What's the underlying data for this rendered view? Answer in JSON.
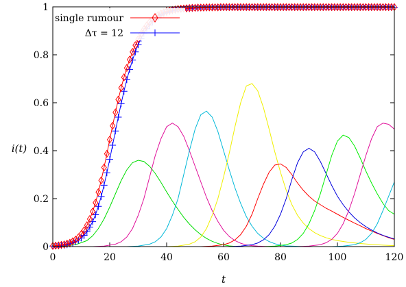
{
  "chart_data": {
    "type": "line",
    "xlabel": "t",
    "ylabel": "i(t)",
    "xlim": [
      0,
      120
    ],
    "ylim": [
      0,
      1
    ],
    "x_ticks": [
      "0",
      "20",
      "40",
      "60",
      "80",
      "100",
      "120"
    ],
    "y_ticks": [
      "0",
      "0.2",
      "0.4",
      "0.6",
      "0.8",
      "1"
    ],
    "legend_position": "top-left",
    "series": [
      {
        "name": "single rumour",
        "color": "#ff0000",
        "marker": "diamond",
        "x": [
          0,
          1,
          2,
          3,
          4,
          5,
          6,
          7,
          8,
          9,
          10,
          11,
          12,
          13,
          14,
          15,
          16,
          17,
          18,
          19,
          20,
          21,
          22,
          23,
          24,
          25,
          26,
          27,
          28,
          29,
          30,
          31,
          32,
          33,
          34,
          35,
          36,
          37,
          38,
          39,
          40,
          41,
          42,
          43,
          44,
          45,
          46,
          47,
          48,
          49,
          50,
          51,
          52,
          53,
          54,
          55,
          56,
          57,
          58,
          59,
          60,
          61,
          62,
          63,
          64,
          65,
          66,
          67,
          68,
          69,
          70,
          71,
          72,
          73,
          74,
          75,
          76,
          77,
          78,
          79,
          80,
          81,
          82,
          83,
          84,
          85,
          86,
          87,
          88,
          89,
          90,
          91,
          92,
          93,
          94,
          95,
          96,
          97,
          98,
          99,
          100,
          101,
          102,
          103,
          104,
          105,
          106,
          107,
          108,
          109,
          110,
          111,
          112,
          113,
          114,
          115,
          116,
          117,
          118,
          119,
          120
        ],
        "y": [
          0.003,
          0.004,
          0.005,
          0.007,
          0.009,
          0.012,
          0.016,
          0.022,
          0.029,
          0.039,
          0.052,
          0.068,
          0.089,
          0.115,
          0.146,
          0.183,
          0.227,
          0.276,
          0.33,
          0.387,
          0.446,
          0.504,
          0.56,
          0.613,
          0.662,
          0.706,
          0.745,
          0.78,
          0.812,
          0.84,
          0.865,
          0.887,
          0.906,
          0.922,
          0.936,
          0.948,
          0.958,
          0.966,
          0.972,
          0.977,
          0.981,
          0.984,
          0.987,
          0.989,
          0.991,
          0.992,
          0.993,
          0.994,
          0.995,
          0.996,
          0.996,
          0.997,
          0.997,
          0.997,
          0.998,
          0.998,
          0.998,
          0.998,
          0.998,
          0.999,
          0.999,
          0.999,
          0.999,
          0.999,
          0.999,
          0.999,
          0.999,
          0.999,
          0.999,
          0.999,
          0.999,
          0.999,
          0.999,
          0.999,
          0.999,
          0.999,
          0.999,
          0.999,
          0.999,
          0.999,
          0.999,
          0.999,
          0.999,
          0.999,
          0.999,
          0.999,
          0.999,
          0.999,
          0.999,
          0.999,
          0.999,
          0.999,
          0.999,
          0.999,
          0.999,
          0.999,
          0.999,
          0.999,
          0.999,
          0.999,
          0.999,
          0.999,
          0.999,
          0.999,
          0.999,
          0.999,
          0.999,
          0.999,
          0.999,
          0.999,
          0.999,
          0.999,
          0.999,
          0.999,
          0.999,
          0.999,
          0.999,
          0.999,
          0.999,
          0.999,
          0.999
        ]
      },
      {
        "name": "Δτ = 12",
        "color": "#0000ff",
        "marker": "plus",
        "x": [
          0,
          1,
          2,
          3,
          4,
          5,
          6,
          7,
          8,
          9,
          10,
          11,
          12,
          13,
          14,
          15,
          16,
          17,
          18,
          19,
          20,
          21,
          22,
          23,
          24,
          25,
          26,
          27,
          28,
          29,
          30,
          31,
          32,
          33,
          34,
          35,
          36,
          37,
          38,
          39,
          40,
          41,
          42,
          43,
          44,
          45,
          46,
          47,
          48,
          49,
          50,
          51,
          52,
          53,
          54,
          55,
          56,
          57,
          58,
          59,
          60,
          61,
          62,
          63,
          64,
          65,
          66,
          67,
          68,
          69,
          70,
          71,
          72,
          73,
          74,
          75,
          76,
          77,
          78,
          79,
          80,
          81,
          82,
          83,
          84,
          85,
          86,
          87,
          88,
          89,
          90,
          91,
          92,
          93,
          94,
          95,
          96,
          97,
          98,
          99,
          100,
          101,
          102,
          103,
          104,
          105,
          106,
          107,
          108,
          109,
          110,
          111,
          112,
          113,
          114,
          115,
          116,
          117,
          118,
          119,
          120
        ],
        "y": [
          0.002,
          0.003,
          0.004,
          0.005,
          0.006,
          0.008,
          0.011,
          0.015,
          0.02,
          0.027,
          0.036,
          0.047,
          0.062,
          0.081,
          0.104,
          0.133,
          0.168,
          0.209,
          0.256,
          0.308,
          0.364,
          0.423,
          0.482,
          0.54,
          0.596,
          0.648,
          0.696,
          0.739,
          0.778,
          0.812,
          0.842,
          0.868,
          0.89,
          0.909,
          0.924,
          0.937,
          0.948,
          0.957,
          0.965,
          0.971,
          0.976,
          0.98,
          0.984,
          0.986,
          0.988,
          0.99,
          0.991,
          0.992,
          0.993,
          0.994,
          0.995,
          0.995,
          0.996,
          0.996,
          0.996,
          0.997,
          0.997,
          0.997,
          0.997,
          0.997,
          0.998,
          0.998,
          0.998,
          0.998,
          0.998,
          0.998,
          0.998,
          0.998,
          0.998,
          0.998,
          0.998,
          0.998,
          0.998,
          0.998,
          0.998,
          0.998,
          0.998,
          0.998,
          0.998,
          0.998,
          0.998,
          0.998,
          0.998,
          0.998,
          0.998,
          0.998,
          0.998,
          0.998,
          0.998,
          0.998,
          0.998,
          0.998,
          0.998,
          0.998,
          0.998,
          0.998,
          0.998,
          0.998,
          0.998,
          0.998,
          0.998,
          0.998,
          0.998,
          0.998,
          0.998,
          0.998,
          0.998,
          0.998,
          0.998,
          0.998,
          0.998,
          0.998,
          0.998,
          0.998,
          0.998,
          0.998,
          0.998,
          0.998,
          0.998,
          0.998,
          0.998
        ]
      },
      {
        "color": "#00dd00",
        "x": [
          0,
          4,
          8,
          12,
          14,
          16,
          18,
          20,
          22,
          24,
          26,
          28,
          30,
          32,
          34,
          36,
          38,
          40,
          42,
          44,
          46,
          48,
          50,
          52,
          54,
          56,
          58,
          60,
          62,
          64
        ],
        "y": [
          0,
          0.002,
          0.008,
          0.025,
          0.045,
          0.075,
          0.115,
          0.165,
          0.22,
          0.275,
          0.32,
          0.35,
          0.36,
          0.355,
          0.335,
          0.305,
          0.268,
          0.228,
          0.19,
          0.155,
          0.122,
          0.094,
          0.07,
          0.05,
          0.034,
          0.022,
          0.013,
          0.007,
          0.003,
          0.001
        ]
      },
      {
        "color": "#e0109a",
        "x": [
          14,
          18,
          22,
          24,
          26,
          28,
          30,
          32,
          34,
          36,
          38,
          40,
          42,
          44,
          46,
          48,
          50,
          52,
          54,
          56,
          58,
          60,
          62,
          64,
          66,
          68,
          70,
          72,
          74,
          76,
          78
        ],
        "y": [
          0,
          0.002,
          0.01,
          0.02,
          0.04,
          0.075,
          0.13,
          0.2,
          0.29,
          0.38,
          0.45,
          0.5,
          0.515,
          0.5,
          0.46,
          0.4,
          0.335,
          0.27,
          0.205,
          0.15,
          0.105,
          0.068,
          0.042,
          0.025,
          0.014,
          0.007,
          0.004,
          0.002,
          0.001,
          0,
          0
        ]
      },
      {
        "color": "#00b8d8",
        "x": [
          26,
          30,
          34,
          36,
          38,
          40,
          42,
          44,
          46,
          48,
          50,
          52,
          54,
          56,
          58,
          60,
          62,
          64,
          66,
          68,
          70,
          72,
          74,
          76,
          78,
          80,
          82,
          84,
          86,
          88,
          90
        ],
        "y": [
          0,
          0.002,
          0.01,
          0.02,
          0.04,
          0.075,
          0.13,
          0.2,
          0.3,
          0.4,
          0.49,
          0.55,
          0.565,
          0.54,
          0.48,
          0.4,
          0.32,
          0.245,
          0.18,
          0.125,
          0.085,
          0.055,
          0.035,
          0.021,
          0.012,
          0.006,
          0.003,
          0.002,
          0.001,
          0,
          0
        ]
      },
      {
        "color": "#f0f000",
        "x": [
          40,
          44,
          48,
          50,
          52,
          54,
          56,
          58,
          60,
          62,
          64,
          66,
          68,
          70,
          72,
          74,
          76,
          78,
          80,
          82,
          84,
          86,
          88,
          90,
          92,
          94,
          96,
          98,
          100,
          104,
          108,
          112,
          116,
          120
        ],
        "y": [
          0,
          0.002,
          0.01,
          0.02,
          0.04,
          0.075,
          0.13,
          0.2,
          0.29,
          0.39,
          0.5,
          0.6,
          0.67,
          0.68,
          0.65,
          0.58,
          0.49,
          0.395,
          0.31,
          0.235,
          0.175,
          0.13,
          0.098,
          0.075,
          0.058,
          0.046,
          0.037,
          0.03,
          0.025,
          0.018,
          0.013,
          0.009,
          0.006,
          0.004
        ]
      },
      {
        "color": "#ff0000",
        "x": [
          52,
          56,
          60,
          62,
          64,
          66,
          68,
          70,
          72,
          74,
          76,
          78,
          80,
          82,
          84,
          86,
          88,
          90,
          92,
          94,
          96,
          98,
          100,
          102,
          104,
          106,
          108,
          110,
          112,
          114,
          116,
          118,
          120
        ],
        "y": [
          0,
          0.002,
          0.008,
          0.015,
          0.028,
          0.05,
          0.085,
          0.135,
          0.2,
          0.26,
          0.31,
          0.34,
          0.345,
          0.33,
          0.3,
          0.265,
          0.235,
          0.21,
          0.19,
          0.175,
          0.16,
          0.148,
          0.135,
          0.122,
          0.11,
          0.098,
          0.087,
          0.075,
          0.065,
          0.055,
          0.046,
          0.037,
          0.03
        ]
      },
      {
        "color": "#0000dd",
        "x": [
          62,
          66,
          70,
          72,
          74,
          76,
          78,
          80,
          82,
          84,
          86,
          88,
          90,
          92,
          94,
          96,
          98,
          100,
          102,
          104,
          106,
          108,
          110,
          112,
          114,
          116,
          118,
          120
        ],
        "y": [
          0,
          0.002,
          0.008,
          0.015,
          0.028,
          0.05,
          0.085,
          0.135,
          0.2,
          0.28,
          0.35,
          0.395,
          0.41,
          0.395,
          0.355,
          0.305,
          0.255,
          0.21,
          0.175,
          0.145,
          0.12,
          0.1,
          0.083,
          0.069,
          0.057,
          0.047,
          0.039,
          0.032
        ]
      },
      {
        "color": "#00ee00",
        "x": [
          74,
          78,
          82,
          84,
          86,
          88,
          90,
          92,
          94,
          96,
          98,
          100,
          102,
          104,
          106,
          108,
          110,
          112,
          114,
          116,
          118,
          120
        ],
        "y": [
          0,
          0.002,
          0.008,
          0.015,
          0.03,
          0.055,
          0.095,
          0.15,
          0.22,
          0.3,
          0.38,
          0.44,
          0.465,
          0.455,
          0.42,
          0.37,
          0.315,
          0.265,
          0.22,
          0.18,
          0.15,
          0.135
        ]
      },
      {
        "color": "#e0109a",
        "x": [
          86,
          90,
          94,
          96,
          98,
          100,
          102,
          104,
          106,
          108,
          110,
          112,
          114,
          116,
          118,
          120
        ],
        "y": [
          0,
          0.002,
          0.008,
          0.016,
          0.03,
          0.055,
          0.095,
          0.15,
          0.22,
          0.3,
          0.38,
          0.45,
          0.5,
          0.515,
          0.51,
          0.49
        ]
      },
      {
        "color": "#00b8d8",
        "x": [
          98,
          102,
          106,
          108,
          110,
          112,
          114,
          116,
          118,
          120
        ],
        "y": [
          0,
          0.002,
          0.008,
          0.016,
          0.03,
          0.055,
          0.095,
          0.15,
          0.21,
          0.27
        ]
      }
    ]
  }
}
